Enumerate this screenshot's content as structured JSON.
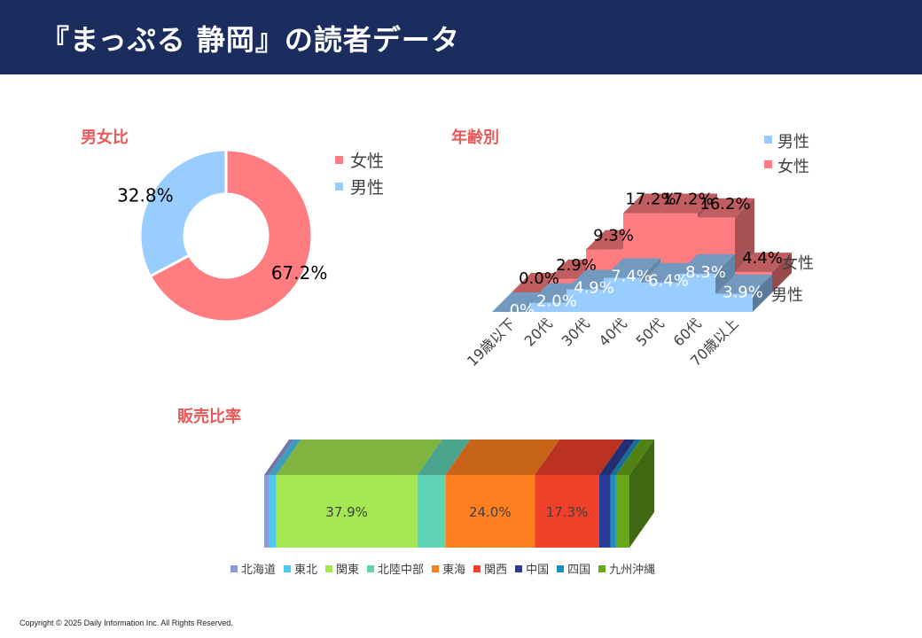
{
  "header": {
    "title": "『まっぷる 静岡』の読者データ"
  },
  "copyright": "Copyright © 2025 Daily Information Inc. All Rights Reserved.",
  "chart_data": [
    {
      "type": "pie",
      "variant": "donut",
      "title": "男女比",
      "slices": [
        {
          "label": "女性",
          "value": 67.2,
          "value_label": "67.2%",
          "color": "#ff7c80"
        },
        {
          "label": "男性",
          "value": 32.8,
          "value_label": "32.8%",
          "color": "#99ccff"
        }
      ],
      "legend": [
        "女性",
        "男性"
      ],
      "legend_position": "right"
    },
    {
      "type": "area",
      "variant": "3d",
      "title": "年齢別",
      "categories": [
        "19歳以下",
        "20代",
        "30代",
        "40代",
        "50代",
        "60代",
        "70歳以上"
      ],
      "series": [
        {
          "name": "男性",
          "values": [
            0.0,
            2.0,
            4.9,
            7.4,
            6.4,
            8.3,
            3.9
          ],
          "labels": [
            ".0%",
            "2.0%",
            "4.9%",
            "7.4%",
            "6.4%",
            "8.3%",
            "3.9%"
          ],
          "color": "#99ccff"
        },
        {
          "name": "女性",
          "values": [
            0.0,
            2.9,
            9.3,
            17.2,
            17.2,
            16.2,
            4.4
          ],
          "labels": [
            "0.0%",
            "2.9%",
            "9.3%",
            "17.2%",
            "17.2%",
            "16.2%",
            "4.4%"
          ],
          "color": "#ff7c80"
        }
      ],
      "legend": [
        "男性",
        "女性"
      ],
      "legend_position": "top-right",
      "depth_labels": [
        "女性",
        "男性"
      ]
    },
    {
      "type": "bar",
      "variant": "100% stacked 3d",
      "title": "販売比率",
      "series": [
        {
          "name": "北海道",
          "value": 1.3,
          "label": "",
          "color": "#8e9ad8"
        },
        {
          "name": "東北",
          "value": 1.9,
          "label": "",
          "color": "#4fc9ef"
        },
        {
          "name": "関東",
          "value": 37.9,
          "label": "37.9%",
          "color": "#a3e851"
        },
        {
          "name": "北陸中部",
          "value": 7.5,
          "label": "",
          "color": "#5fd4b4"
        },
        {
          "name": "東海",
          "value": 24.0,
          "label": "24.0%",
          "color": "#ff8021"
        },
        {
          "name": "関西",
          "value": 17.3,
          "label": "17.3%",
          "color": "#f0402a"
        },
        {
          "name": "中国",
          "value": 3.0,
          "label": "",
          "color": "#2b3c94"
        },
        {
          "name": "四国",
          "value": 1.5,
          "label": "",
          "color": "#1c8ec0"
        },
        {
          "name": "九州沖縄",
          "value": 3.6,
          "label": "",
          "color": "#66a81a"
        }
      ],
      "legend_position": "bottom"
    }
  ]
}
